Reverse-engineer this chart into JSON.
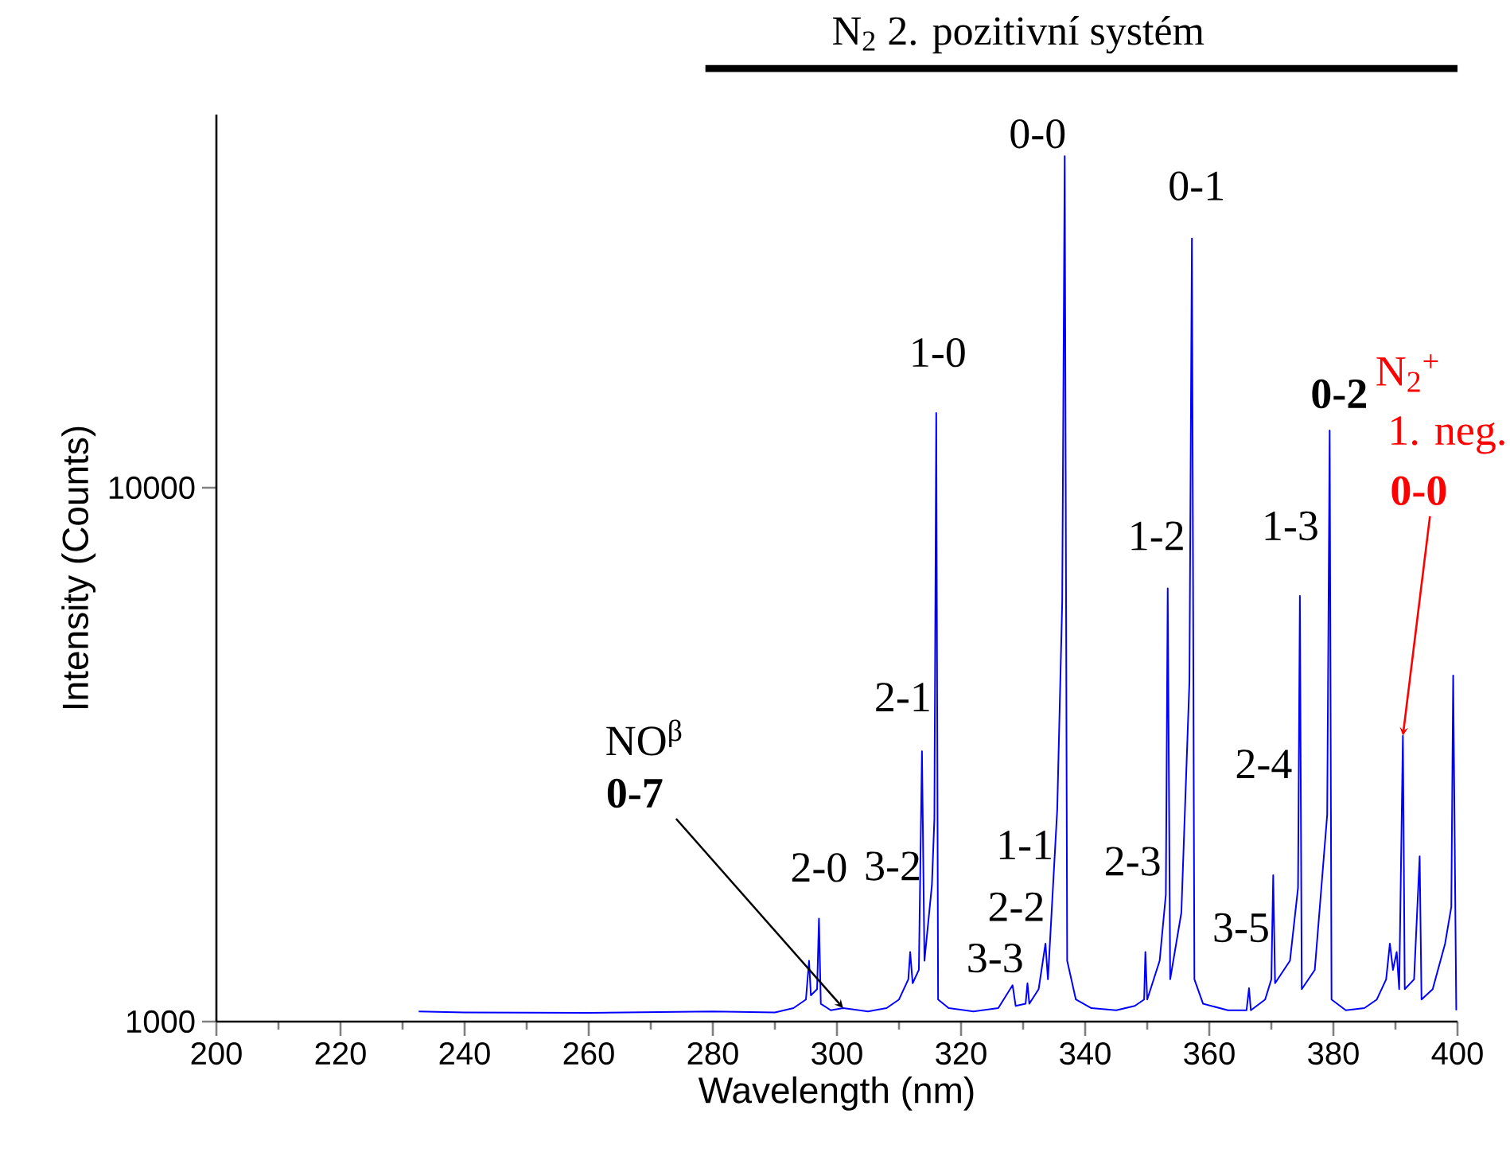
{
  "chart_data": {
    "type": "line",
    "xlabel": "Wavelength (nm)",
    "ylabel": "Intensity (Counts)",
    "log": "y",
    "xlim": [
      200,
      400
    ],
    "ylim": [
      1000,
      50000
    ],
    "xticks": [
      200,
      220,
      240,
      260,
      280,
      300,
      320,
      340,
      360,
      380,
      400
    ],
    "yticks": [
      1000,
      10000
    ],
    "series": [
      {
        "color": "#0000ff",
        "x": [
          232.6,
          240,
          260,
          280,
          290,
          293,
          295,
          295.5,
          295.8,
          296.8,
          297.1,
          297.4,
          299,
          301,
          305,
          308,
          310,
          311.5,
          311.8,
          312.2,
          313.2,
          313.7,
          314.1,
          315.3,
          315.7,
          316.0,
          316.3,
          318,
          322,
          326,
          328.3,
          328.8,
          330.4,
          330.7,
          331,
          332.5,
          333.6,
          334,
          335.5,
          336.3,
          336.7,
          337.1,
          338.5,
          341,
          345,
          348,
          349.5,
          349.7,
          350,
          352,
          353.0,
          353.3,
          353.7,
          355.5,
          356.8,
          357.2,
          357.6,
          359,
          363,
          366,
          366.4,
          366.7,
          369,
          370,
          370.3,
          370.6,
          373,
          374.3,
          374.6,
          374.9,
          377,
          379,
          379.4,
          379.7,
          382,
          385,
          387,
          388.5,
          389.1,
          389.6,
          390.2,
          390.6,
          391.2,
          391.5,
          393,
          393.9,
          394.2,
          396,
          398,
          399.0,
          399.3,
          399.8
        ],
        "values": [
          1045,
          1040,
          1038,
          1045,
          1040,
          1060,
          1100,
          1300,
          1120,
          1150,
          1560,
          1080,
          1050,
          1060,
          1045,
          1060,
          1100,
          1200,
          1350,
          1180,
          1250,
          3210,
          1300,
          1800,
          2400,
          13800,
          1100,
          1060,
          1045,
          1060,
          1170,
          1070,
          1080,
          1180,
          1080,
          1150,
          1400,
          1200,
          2500,
          6110,
          41800,
          1300,
          1100,
          1060,
          1050,
          1070,
          1100,
          1350,
          1100,
          1300,
          1730,
          6480,
          1200,
          1600,
          4330,
          29300,
          1200,
          1080,
          1050,
          1050,
          1155,
          1050,
          1100,
          1200,
          1880,
          1180,
          1300,
          1780,
          6270,
          1150,
          1250,
          2440,
          12800,
          1100,
          1050,
          1060,
          1100,
          1200,
          1400,
          1250,
          1350,
          1150,
          3430,
          1150,
          1200,
          2040,
          1100,
          1150,
          1400,
          1640,
          4450,
          1050
        ]
      }
    ],
    "annotations": [
      {
        "text": "0-0",
        "x": 336.7,
        "y": 41800
      },
      {
        "text": "1-0",
        "x": 316.0,
        "y": 13800
      },
      {
        "text": "2-1",
        "x": 313.7,
        "y": 3210
      },
      {
        "text": "2-0",
        "x": 297.1,
        "y": 1560
      },
      {
        "text": "3-2",
        "x": 311.8,
        "y": 1350
      },
      {
        "text": "1-1",
        "x": 333.6,
        "y": 1400
      },
      {
        "text": "2-2",
        "x": 330.7,
        "y": 1180
      },
      {
        "text": "3-3",
        "x": 328.3,
        "y": 1170
      },
      {
        "text": "2-3",
        "x": 349.7,
        "y": 1350
      },
      {
        "text": "1-2",
        "x": 353.3,
        "y": 6480
      },
      {
        "text": "0-1",
        "x": 357.2,
        "y": 29300
      },
      {
        "text": "2-4",
        "x": 370.3,
        "y": 1880
      },
      {
        "text": "3-5",
        "x": 366.4,
        "y": 1155
      },
      {
        "text": "1-3",
        "x": 374.6,
        "y": 6270
      },
      {
        "text": "0-2",
        "x": 379.4,
        "y": 12800
      },
      "NO$^{β}$",
      {
        "text": "0-7",
        "x": 301,
        "y": 1060
      },
      "N$_{2}$$^{+}$",
      "1. neg.",
      {
        "text": "0-0",
        "x": 391.2,
        "y": 3430
      },
      "N$_{2}$ 2. pozitivní systém"
    ]
  }
}
